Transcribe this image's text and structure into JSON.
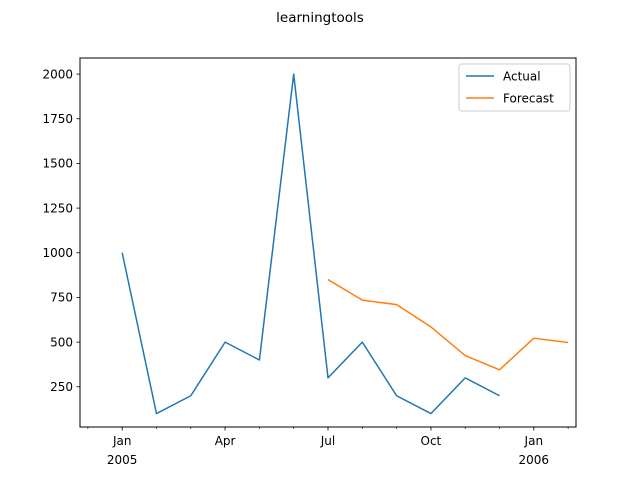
{
  "chart_data": {
    "type": "line",
    "title": "learningtools",
    "xlabel": "",
    "ylabel": "",
    "x_ticks": [
      {
        "date": "2005-01",
        "label": "Jan",
        "sublabel": "2005"
      },
      {
        "date": "2005-04",
        "label": "Apr",
        "sublabel": ""
      },
      {
        "date": "2005-07",
        "label": "Jul",
        "sublabel": ""
      },
      {
        "date": "2005-10",
        "label": "Oct",
        "sublabel": ""
      },
      {
        "date": "2006-01",
        "label": "Jan",
        "sublabel": "2006"
      }
    ],
    "y_ticks": [
      250,
      500,
      750,
      1000,
      1250,
      1500,
      1750,
      2000
    ],
    "ylim": [
      25,
      2090
    ],
    "xlim": [
      "2004-12",
      "2006-03"
    ],
    "legend_position": "top-right",
    "grid": false,
    "series": [
      {
        "name": "Actual",
        "color": "#1f77b4",
        "points": [
          {
            "x": "2005-01",
            "y": 1000
          },
          {
            "x": "2005-02",
            "y": 100
          },
          {
            "x": "2005-03",
            "y": 200
          },
          {
            "x": "2005-04",
            "y": 500
          },
          {
            "x": "2005-05",
            "y": 400
          },
          {
            "x": "2005-06",
            "y": 2000
          },
          {
            "x": "2005-07",
            "y": 300
          },
          {
            "x": "2005-08",
            "y": 500
          },
          {
            "x": "2005-09",
            "y": 200
          },
          {
            "x": "2005-10",
            "y": 100
          },
          {
            "x": "2005-11",
            "y": 300
          },
          {
            "x": "2005-12",
            "y": 200
          }
        ]
      },
      {
        "name": "Forecast",
        "color": "#ff7f0e",
        "points": [
          {
            "x": "2005-07",
            "y": 850
          },
          {
            "x": "2005-08",
            "y": 735
          },
          {
            "x": "2005-09",
            "y": 710
          },
          {
            "x": "2005-10",
            "y": 585
          },
          {
            "x": "2005-11",
            "y": 425
          },
          {
            "x": "2005-12",
            "y": 345
          },
          {
            "x": "2006-01",
            "y": 522
          },
          {
            "x": "2006-02",
            "y": 498
          }
        ]
      }
    ]
  }
}
